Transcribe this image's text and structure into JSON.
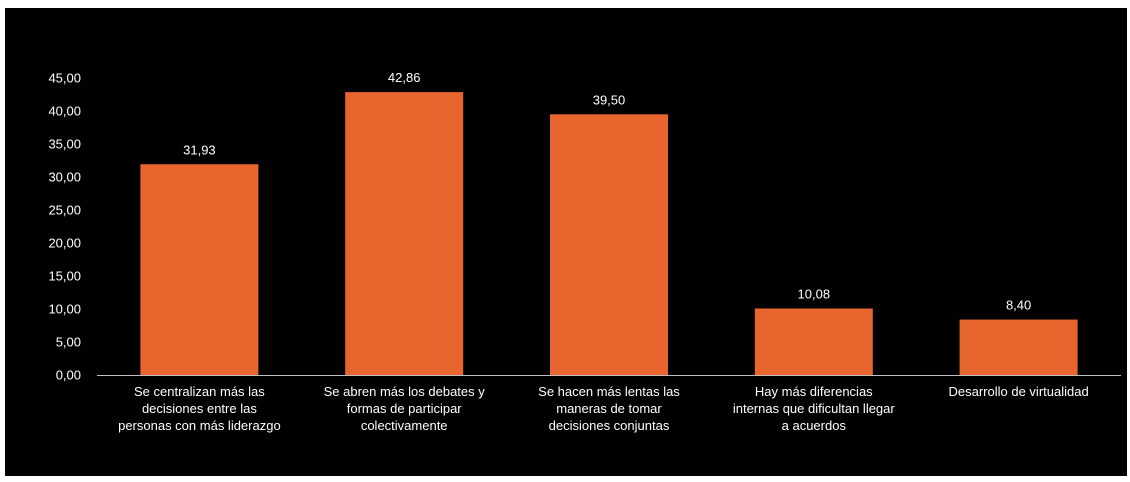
{
  "chart_data": {
    "type": "bar",
    "categories": [
      [
        "Se centralizan más las",
        "decisiones entre las",
        "personas con más liderazgo"
      ],
      [
        "Se abren más los debates y",
        "formas de participar",
        "colectivamente"
      ],
      [
        "Se hacen más lentas las",
        "maneras de tomar",
        "decisiones conjuntas"
      ],
      [
        "Hay más diferencias",
        "internas que dificultan llegar",
        "a acuerdos"
      ],
      [
        "Desarrollo de virtualidad"
      ]
    ],
    "values": [
      31.93,
      42.86,
      39.5,
      10.08,
      8.4
    ],
    "value_labels": [
      "31,93",
      "42,86",
      "39,50",
      "10,08",
      "8,40"
    ],
    "yticks": [
      0,
      5,
      10,
      15,
      20,
      25,
      30,
      35,
      40,
      45
    ],
    "ytick_labels": [
      "0,00",
      "5,00",
      "10,00",
      "15,00",
      "20,00",
      "25,00",
      "30,00",
      "35,00",
      "40,00",
      "45,00"
    ],
    "ylim": [
      0,
      45
    ],
    "grid": false,
    "legend": "none",
    "title": "",
    "xlabel": "",
    "ylabel": "",
    "bar_color": "#E8662D",
    "background_color": "#000000",
    "text_color": "#FFFFFF",
    "axis_color": "#BFBFBF"
  }
}
